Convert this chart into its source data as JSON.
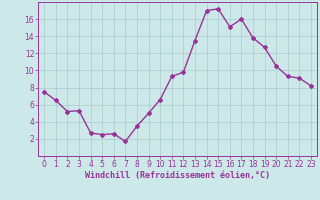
{
  "x": [
    0,
    1,
    2,
    3,
    4,
    5,
    6,
    7,
    8,
    9,
    10,
    11,
    12,
    13,
    14,
    15,
    16,
    17,
    18,
    19,
    20,
    21,
    22,
    23
  ],
  "y": [
    7.5,
    6.5,
    5.2,
    5.3,
    2.7,
    2.5,
    2.6,
    1.7,
    3.5,
    5.0,
    6.6,
    9.3,
    9.8,
    13.5,
    17.0,
    17.2,
    15.1,
    16.0,
    13.8,
    12.7,
    10.5,
    9.3,
    9.1,
    8.2
  ],
  "line_color": "#993399",
  "marker": "D",
  "marker_size": 2.0,
  "bg_color": "#cce8e8",
  "grid_color": "#aacccc",
  "xlabel": "Windchill (Refroidissement éolien,°C)",
  "xlabel_color": "#993399",
  "tick_color": "#993399",
  "ylim": [
    0,
    18
  ],
  "yticks": [
    2,
    4,
    6,
    8,
    10,
    12,
    14,
    16
  ],
  "xticks": [
    0,
    1,
    2,
    3,
    4,
    5,
    6,
    7,
    8,
    9,
    10,
    11,
    12,
    13,
    14,
    15,
    16,
    17,
    18,
    19,
    20,
    21,
    22,
    23
  ],
  "spine_color": "#993399",
  "tick_fontsize": 5.5,
  "xlabel_fontsize": 6.0,
  "linewidth": 1.0
}
